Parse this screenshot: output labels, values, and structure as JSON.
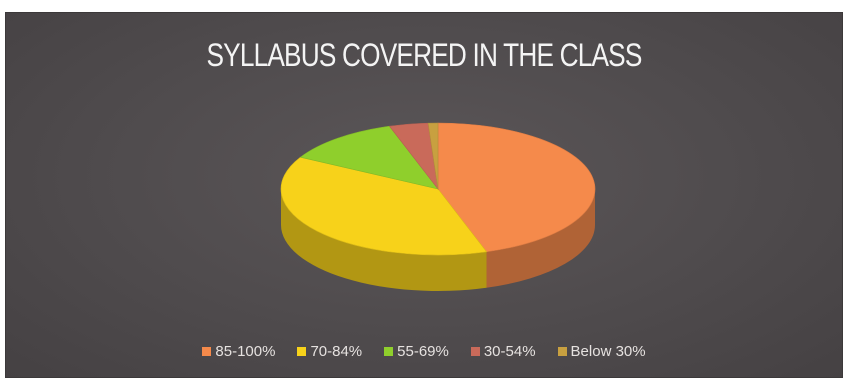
{
  "chart_data": {
    "type": "pie",
    "title": "SYLLABUS COVERED IN THE CLASS",
    "categories": [
      "85-100%",
      "70-84%",
      "55-69%",
      "30-54%",
      "Below 30%"
    ],
    "values": [
      45,
      38,
      12,
      4,
      1
    ],
    "colors": [
      "#f58a4b",
      "#f7d21a",
      "#8fcf2c",
      "#c96a5a",
      "#c8a040"
    ],
    "style": "3d",
    "legend_position": "bottom"
  }
}
